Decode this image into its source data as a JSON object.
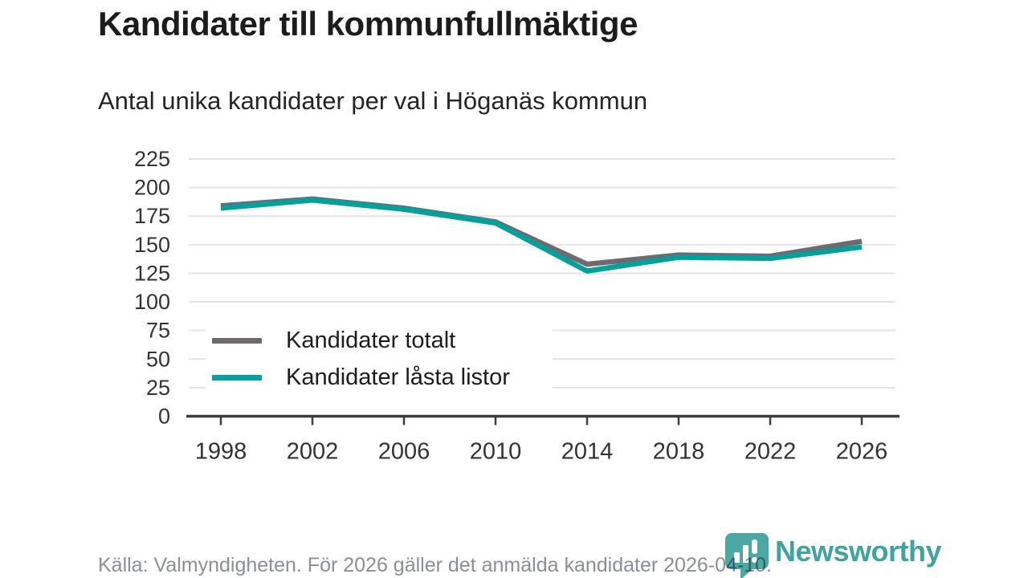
{
  "title": "Kandidater till kommunfullmäktige",
  "subtitle": "Antal unika kandidater per val i Höganäs kommun",
  "source_note": "Källa: Valmyndigheten. För 2026 gäller det anmälda kandidater 2026-04-10.",
  "branding": {
    "name": "Newsworthy"
  },
  "colors": {
    "total_line": "#6e6a6e",
    "locked_line": "#00a39b",
    "grid": "#e4e4e4",
    "axis": "#3c3c3c",
    "muted_text": "#8a8f94",
    "brand": "#4ba8a3"
  },
  "chart_data": {
    "type": "line",
    "x": [
      1998,
      2002,
      2006,
      2010,
      2014,
      2018,
      2022,
      2026
    ],
    "series": [
      {
        "name": "Kandidater totalt",
        "color": "#6e6a6e",
        "values": [
          184,
          190,
          182,
          170,
          133,
          141,
          140,
          153
        ]
      },
      {
        "name": "Kandidater låsta listor",
        "color": "#00a39b",
        "values": [
          182,
          189,
          181,
          169,
          127,
          139,
          138,
          148
        ]
      }
    ],
    "title": "Kandidater till kommunfullmäktige",
    "subtitle": "Antal unika kandidater per val i Höganäs kommun",
    "xlabel": "",
    "ylabel": "",
    "ylim": [
      0,
      225
    ],
    "ytick_step": 25,
    "grid": true,
    "legend_position": "inside-bottom-left"
  }
}
